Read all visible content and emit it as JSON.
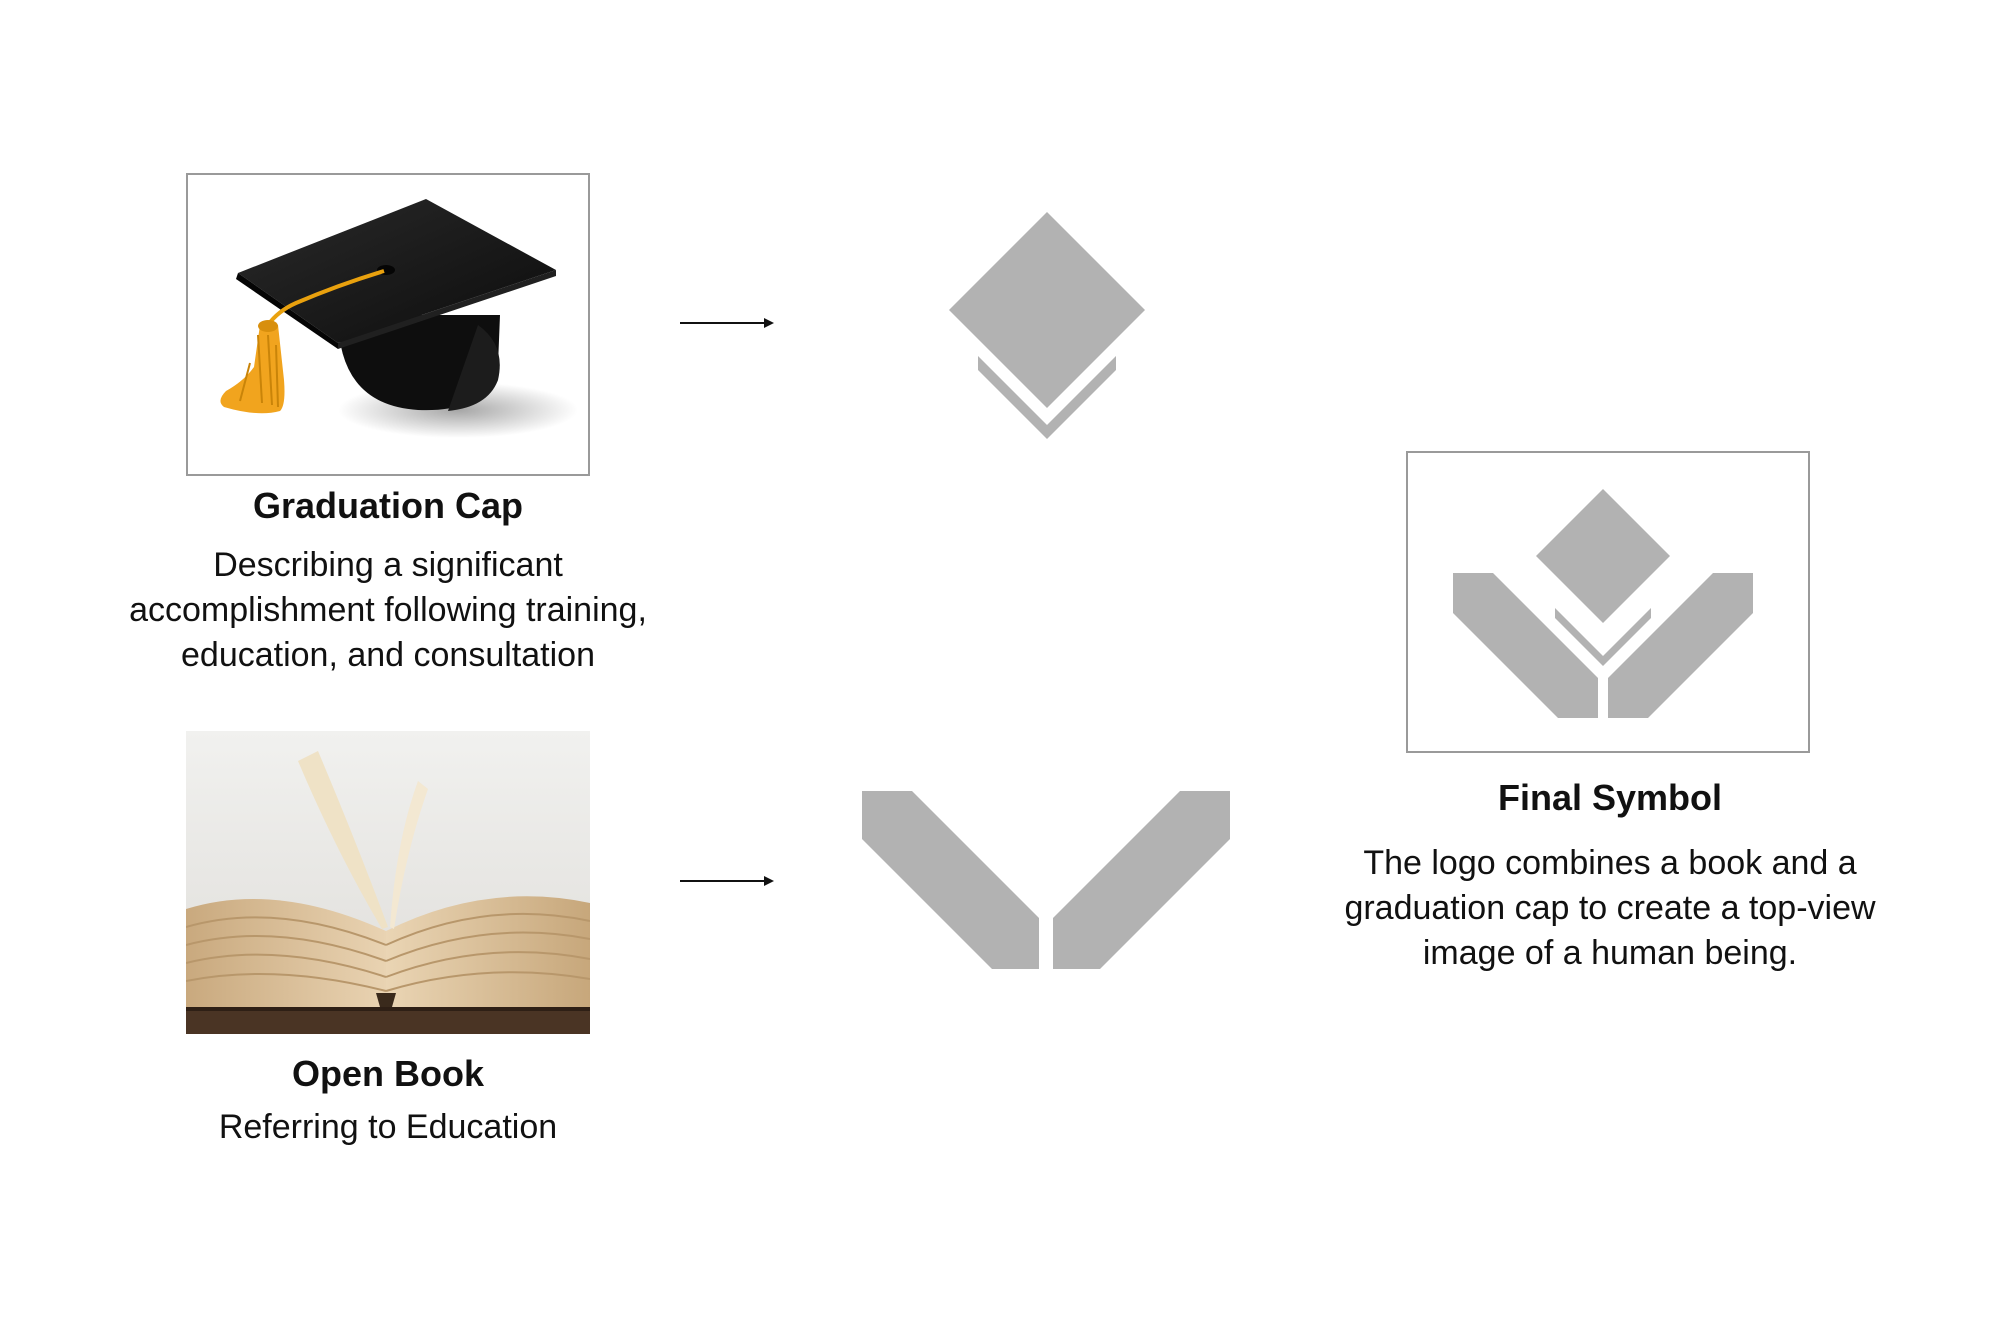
{
  "colors": {
    "symbol_gray": "#b2b2b2",
    "frame_border": "#9a9a9a",
    "text": "#111111",
    "arrow": "#111111",
    "cap_black": "#161616",
    "tassel_gold": "#f1a41e"
  },
  "graduation_cap": {
    "title": "Graduation Cap",
    "description": "Describing a significant accomplishment following training, education, and consultation",
    "photo": "graduation-cap-photo"
  },
  "open_book": {
    "title": "Open Book",
    "description": "Referring  to Education",
    "photo": "open-book-photo"
  },
  "final_symbol": {
    "title": "Final Symbol",
    "description": "The logo combines a book and a graduation cap to create a top-view image of a human being."
  },
  "icons": [
    "arrow-right-icon",
    "cap-symbol-icon",
    "book-symbol-icon",
    "final-logo-icon"
  ]
}
